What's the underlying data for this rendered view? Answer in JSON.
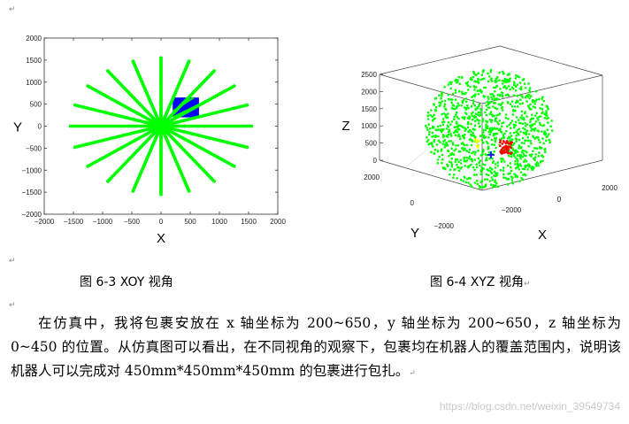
{
  "paragraph_marks": [
    "↵",
    "↵",
    "↵"
  ],
  "captions": {
    "left": "图 6-3 XOY 视角",
    "right": "图 6-4 XYZ 视角",
    "right_mark": "↵"
  },
  "paragraph": {
    "text": "在仿真中，我将包裹安放在 x 轴坐标为 200~650，y 轴坐标为 200~650，z 轴坐标为 0~450 的位置。从仿真图可以看出，在不同视角的观察下，包裹均在机器人的覆盖范围内，说明该机器人可以完成对 450mm*450mm*450mm 的包裹进行包扎。",
    "end_mark": "↵"
  },
  "watermark": "https://blog.csdn.net/weixin_39549734",
  "chart_data": [
    {
      "type": "scatter",
      "xlabel": "X",
      "ylabel": "Y",
      "xlim": [
        -2000,
        2000
      ],
      "ylim": [
        -2000,
        2000
      ],
      "xticks": [
        -2000,
        -1500,
        -1000,
        -500,
        0,
        500,
        1000,
        1500,
        2000
      ],
      "yticks": [
        -2000,
        -1500,
        -1000,
        -500,
        0,
        500,
        1000,
        1500,
        2000
      ],
      "workspace": {
        "rays": 20,
        "radius": 1550,
        "color": "#00ff00"
      },
      "package": {
        "x": [
          200,
          650
        ],
        "y": [
          200,
          650
        ],
        "color": "#0000ff"
      }
    },
    {
      "type": "scatter",
      "xlabel": "X",
      "ylabel": "Y",
      "zlabel": "Z",
      "xticks": [
        -2000,
        0,
        2000
      ],
      "yticks": [
        -2000,
        0,
        2000
      ],
      "zticks": [
        0,
        500,
        1000,
        1500,
        2000,
        2500
      ],
      "colors": {
        "workspace": "#00ff00",
        "package": "#ff0000",
        "marker": "#ffff00",
        "axis_marker": "#0000ff"
      }
    }
  ]
}
